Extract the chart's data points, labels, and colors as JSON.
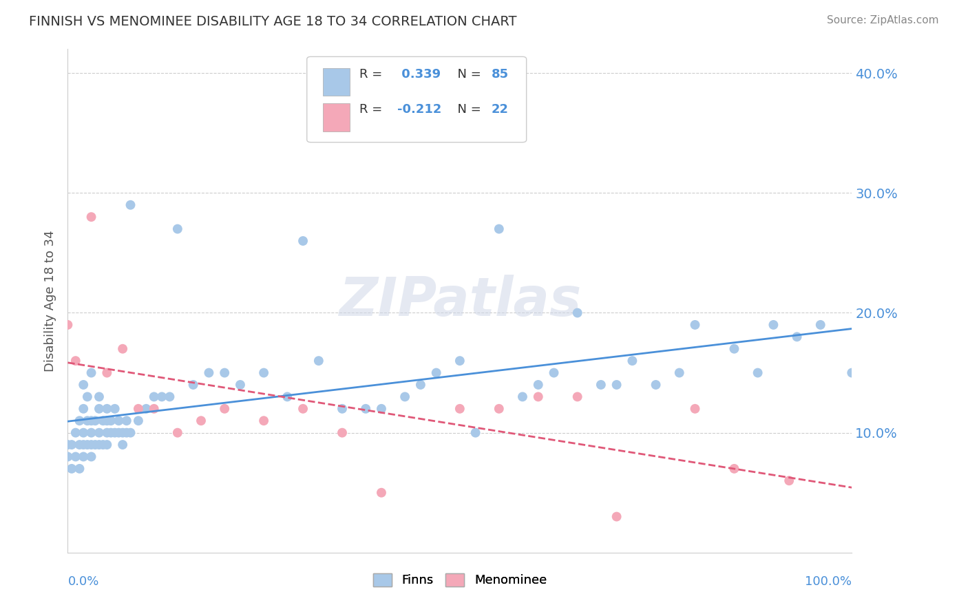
{
  "title": "FINNISH VS MENOMINEE DISABILITY AGE 18 TO 34 CORRELATION CHART",
  "source": "Source: ZipAtlas.com",
  "ylabel": "Disability Age 18 to 34",
  "ylim": [
    0.0,
    0.42
  ],
  "xlim": [
    0.0,
    1.0
  ],
  "ytick_vals": [
    0.1,
    0.2,
    0.3,
    0.4
  ],
  "ytick_labels": [
    "10.0%",
    "20.0%",
    "30.0%",
    "40.0%"
  ],
  "background_color": "#ffffff",
  "grid_color": "#cccccc",
  "finns_color": "#a8c8e8",
  "menominee_color": "#f4a8b8",
  "finns_line_color": "#4a90d9",
  "menominee_line_color": "#e05878",
  "tick_label_color": "#4a90d9",
  "watermark_text": "ZIPatlas",
  "finns_scatter_x": [
    0.0,
    0.0,
    0.005,
    0.005,
    0.01,
    0.01,
    0.015,
    0.015,
    0.015,
    0.02,
    0.02,
    0.02,
    0.02,
    0.02,
    0.025,
    0.025,
    0.025,
    0.03,
    0.03,
    0.03,
    0.03,
    0.03,
    0.035,
    0.035,
    0.04,
    0.04,
    0.04,
    0.04,
    0.045,
    0.045,
    0.05,
    0.05,
    0.05,
    0.05,
    0.055,
    0.055,
    0.06,
    0.06,
    0.065,
    0.065,
    0.07,
    0.07,
    0.075,
    0.075,
    0.08,
    0.08,
    0.09,
    0.1,
    0.11,
    0.12,
    0.13,
    0.14,
    0.16,
    0.18,
    0.2,
    0.22,
    0.25,
    0.28,
    0.3,
    0.32,
    0.35,
    0.38,
    0.4,
    0.43,
    0.45,
    0.47,
    0.5,
    0.52,
    0.55,
    0.58,
    0.6,
    0.62,
    0.65,
    0.68,
    0.7,
    0.72,
    0.75,
    0.78,
    0.8,
    0.85,
    0.88,
    0.9,
    0.93,
    0.96,
    1.0
  ],
  "finns_scatter_y": [
    0.08,
    0.09,
    0.07,
    0.09,
    0.08,
    0.1,
    0.07,
    0.09,
    0.11,
    0.08,
    0.09,
    0.1,
    0.12,
    0.14,
    0.09,
    0.11,
    0.13,
    0.08,
    0.09,
    0.1,
    0.11,
    0.15,
    0.09,
    0.11,
    0.09,
    0.1,
    0.12,
    0.13,
    0.09,
    0.11,
    0.09,
    0.1,
    0.11,
    0.12,
    0.1,
    0.11,
    0.1,
    0.12,
    0.1,
    0.11,
    0.09,
    0.1,
    0.1,
    0.11,
    0.1,
    0.29,
    0.11,
    0.12,
    0.13,
    0.13,
    0.13,
    0.27,
    0.14,
    0.15,
    0.15,
    0.14,
    0.15,
    0.13,
    0.26,
    0.16,
    0.12,
    0.12,
    0.12,
    0.13,
    0.14,
    0.15,
    0.16,
    0.1,
    0.27,
    0.13,
    0.14,
    0.15,
    0.2,
    0.14,
    0.14,
    0.16,
    0.14,
    0.15,
    0.19,
    0.17,
    0.15,
    0.19,
    0.18,
    0.19,
    0.15
  ],
  "menominee_scatter_x": [
    0.0,
    0.01,
    0.03,
    0.05,
    0.07,
    0.09,
    0.11,
    0.14,
    0.17,
    0.2,
    0.25,
    0.3,
    0.35,
    0.4,
    0.5,
    0.55,
    0.6,
    0.65,
    0.7,
    0.8,
    0.85,
    0.92
  ],
  "menominee_scatter_y": [
    0.19,
    0.16,
    0.28,
    0.15,
    0.17,
    0.12,
    0.12,
    0.1,
    0.11,
    0.12,
    0.11,
    0.12,
    0.1,
    0.05,
    0.12,
    0.12,
    0.13,
    0.13,
    0.03,
    0.12,
    0.07,
    0.06
  ]
}
